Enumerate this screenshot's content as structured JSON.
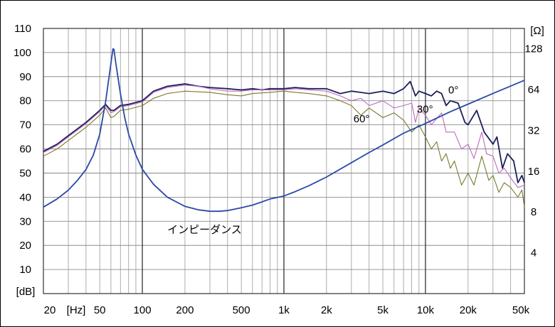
{
  "chart_data": {
    "type": "line",
    "x_scale": "log",
    "xlim": [
      20,
      50000
    ],
    "x_ticks": [
      {
        "value": 20,
        "label": "20"
      },
      {
        "value": 50,
        "label": "50"
      },
      {
        "value": 100,
        "label": "100"
      },
      {
        "value": 200,
        "label": "200"
      },
      {
        "value": 500,
        "label": "500"
      },
      {
        "value": 1000,
        "label": "1k"
      },
      {
        "value": 2000,
        "label": "2k"
      },
      {
        "value": 5000,
        "label": "5k"
      },
      {
        "value": 10000,
        "label": "10k"
      },
      {
        "value": 20000,
        "label": "20k"
      },
      {
        "value": 50000,
        "label": "50k"
      }
    ],
    "x_unit_label": "[Hz]",
    "ylim": [
      0,
      110
    ],
    "y_ticks": [
      10,
      20,
      30,
      40,
      50,
      60,
      70,
      80,
      90,
      100,
      110
    ],
    "y_unit_label": "[dB]",
    "y2_scale": "log",
    "y2lim": [
      2,
      181
    ],
    "y2_ticks": [
      4,
      8,
      16,
      32,
      64,
      128
    ],
    "y2_unit_label": "[Ω]",
    "grid": true,
    "series": [
      {
        "name": "0°",
        "axis": "left",
        "color": "#1c1f5c",
        "points": [
          [
            20,
            59
          ],
          [
            25,
            62
          ],
          [
            30,
            65.5
          ],
          [
            40,
            71
          ],
          [
            50,
            76
          ],
          [
            55,
            78.5
          ],
          [
            60,
            76
          ],
          [
            63,
            76
          ],
          [
            70,
            78
          ],
          [
            80,
            78.5
          ],
          [
            100,
            80
          ],
          [
            120,
            84
          ],
          [
            150,
            86
          ],
          [
            200,
            87
          ],
          [
            250,
            86
          ],
          [
            300,
            85.5
          ],
          [
            400,
            85
          ],
          [
            500,
            84.5
          ],
          [
            600,
            85
          ],
          [
            700,
            84.5
          ],
          [
            800,
            85
          ],
          [
            1000,
            85
          ],
          [
            1200,
            85.5
          ],
          [
            1500,
            85
          ],
          [
            2000,
            85
          ],
          [
            2500,
            83
          ],
          [
            3000,
            84
          ],
          [
            4000,
            83
          ],
          [
            5000,
            84
          ],
          [
            6000,
            83
          ],
          [
            7000,
            85
          ],
          [
            7800,
            88
          ],
          [
            8500,
            82
          ],
          [
            9000,
            84
          ],
          [
            10000,
            83
          ],
          [
            11000,
            82
          ],
          [
            12000,
            84
          ],
          [
            13000,
            83
          ],
          [
            14000,
            78
          ],
          [
            15000,
            80
          ],
          [
            17000,
            79
          ],
          [
            19000,
            71
          ],
          [
            20000,
            70
          ],
          [
            23000,
            76
          ],
          [
            26000,
            67
          ],
          [
            30000,
            62
          ],
          [
            32000,
            65
          ],
          [
            35000,
            52
          ],
          [
            38000,
            58
          ],
          [
            42000,
            55
          ],
          [
            45000,
            46
          ],
          [
            48000,
            49
          ],
          [
            50000,
            46
          ]
        ]
      },
      {
        "name": "30°",
        "axis": "left",
        "color": "#c068c0",
        "points": [
          [
            20,
            58.5
          ],
          [
            25,
            61.5
          ],
          [
            30,
            65
          ],
          [
            40,
            70.5
          ],
          [
            50,
            75.5
          ],
          [
            55,
            78
          ],
          [
            60,
            75
          ],
          [
            63,
            75.5
          ],
          [
            70,
            77.5
          ],
          [
            80,
            78
          ],
          [
            100,
            79.5
          ],
          [
            120,
            83.5
          ],
          [
            150,
            85.5
          ],
          [
            200,
            86.5
          ],
          [
            250,
            86
          ],
          [
            300,
            85
          ],
          [
            400,
            84
          ],
          [
            500,
            84
          ],
          [
            600,
            84.5
          ],
          [
            800,
            84.5
          ],
          [
            1000,
            84.5
          ],
          [
            1200,
            85
          ],
          [
            1500,
            84.5
          ],
          [
            2000,
            84
          ],
          [
            2500,
            82
          ],
          [
            3000,
            80
          ],
          [
            3500,
            81
          ],
          [
            4000,
            78
          ],
          [
            5000,
            80
          ],
          [
            6000,
            77
          ],
          [
            7000,
            78
          ],
          [
            8000,
            79
          ],
          [
            8500,
            71
          ],
          [
            9000,
            77
          ],
          [
            10000,
            74
          ],
          [
            11000,
            70
          ],
          [
            13000,
            75
          ],
          [
            14000,
            67
          ],
          [
            16000,
            67
          ],
          [
            18000,
            60
          ],
          [
            20000,
            62
          ],
          [
            22000,
            56
          ],
          [
            25000,
            67
          ],
          [
            27000,
            58
          ],
          [
            30000,
            57
          ],
          [
            33000,
            50
          ],
          [
            36000,
            52
          ],
          [
            40000,
            48
          ],
          [
            45000,
            44
          ],
          [
            50000,
            45
          ]
        ]
      },
      {
        "name": "60°",
        "axis": "left",
        "color": "#7a7a2a",
        "points": [
          [
            20,
            57
          ],
          [
            25,
            60
          ],
          [
            30,
            63.5
          ],
          [
            40,
            69
          ],
          [
            50,
            74
          ],
          [
            55,
            77
          ],
          [
            60,
            73
          ],
          [
            63,
            73.5
          ],
          [
            70,
            76
          ],
          [
            80,
            76.5
          ],
          [
            100,
            78
          ],
          [
            120,
            81
          ],
          [
            150,
            83
          ],
          [
            200,
            84
          ],
          [
            300,
            83.5
          ],
          [
            400,
            82.5
          ],
          [
            500,
            82
          ],
          [
            600,
            83
          ],
          [
            800,
            83.5
          ],
          [
            1000,
            84
          ],
          [
            1200,
            83.5
          ],
          [
            1500,
            83
          ],
          [
            2000,
            82
          ],
          [
            2500,
            80
          ],
          [
            3000,
            78
          ],
          [
            3500,
            74
          ],
          [
            4000,
            77
          ],
          [
            5000,
            73
          ],
          [
            6000,
            75
          ],
          [
            7000,
            72
          ],
          [
            8000,
            67
          ],
          [
            9000,
            70
          ],
          [
            10000,
            65
          ],
          [
            11000,
            60
          ],
          [
            12000,
            63
          ],
          [
            13000,
            55
          ],
          [
            14000,
            58
          ],
          [
            15000,
            52
          ],
          [
            16000,
            55
          ],
          [
            18000,
            45
          ],
          [
            20000,
            50
          ],
          [
            22000,
            45
          ],
          [
            25000,
            57
          ],
          [
            28000,
            47
          ],
          [
            30000,
            49
          ],
          [
            33000,
            42
          ],
          [
            36000,
            46
          ],
          [
            40000,
            44
          ],
          [
            45000,
            40
          ],
          [
            48000,
            43
          ],
          [
            50000,
            36
          ]
        ]
      },
      {
        "name": "インピーダンス",
        "axis": "right",
        "color": "#2a4aa8",
        "points": [
          [
            20,
            8.7
          ],
          [
            25,
            10
          ],
          [
            30,
            11.6
          ],
          [
            35,
            13.8
          ],
          [
            40,
            16.5
          ],
          [
            45,
            21
          ],
          [
            50,
            30
          ],
          [
            55,
            52
          ],
          [
            60,
            100
          ],
          [
            62,
            128
          ],
          [
            63,
            127
          ],
          [
            65,
            100
          ],
          [
            70,
            60
          ],
          [
            75,
            40
          ],
          [
            80,
            30
          ],
          [
            90,
            21
          ],
          [
            100,
            16.5
          ],
          [
            120,
            12.8
          ],
          [
            150,
            10.3
          ],
          [
            200,
            8.8
          ],
          [
            250,
            8.3
          ],
          [
            300,
            8.1
          ],
          [
            350,
            8.1
          ],
          [
            400,
            8.2
          ],
          [
            500,
            8.6
          ],
          [
            600,
            9
          ],
          [
            700,
            9.5
          ],
          [
            800,
            10
          ],
          [
            1000,
            10.5
          ],
          [
            1200,
            11.3
          ],
          [
            1500,
            12.5
          ],
          [
            2000,
            14.5
          ],
          [
            3000,
            18.5
          ],
          [
            4000,
            22
          ],
          [
            5000,
            25
          ],
          [
            7000,
            30.5
          ],
          [
            10000,
            36
          ],
          [
            15000,
            44
          ],
          [
            20000,
            50
          ],
          [
            30000,
            60
          ],
          [
            40000,
            68
          ],
          [
            50000,
            75
          ]
        ]
      }
    ],
    "annotations": [
      {
        "text": "0°",
        "x": 14500,
        "y": 83
      },
      {
        "text": "30°",
        "x": 8700,
        "y": 75
      },
      {
        "text": "60°",
        "x": 3100,
        "y": 71
      },
      {
        "text": "インピーダンス",
        "x": 150,
        "y": 25
      }
    ]
  }
}
